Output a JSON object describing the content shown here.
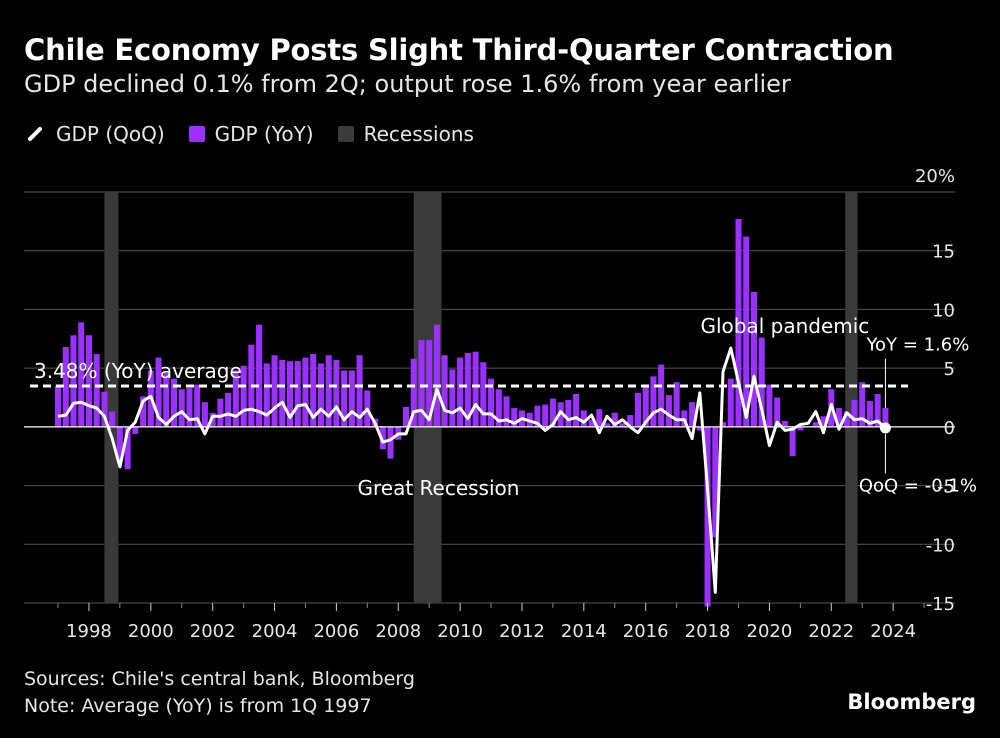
{
  "title": "Chile Economy Posts Slight Third-Quarter Contraction",
  "subtitle": "GDP declined 0.1% from 2Q; output rose 1.6% from year earlier",
  "legend": {
    "qoq": "GDP (QoQ)",
    "yoy": "GDP (YoY)",
    "recessions": "Recessions"
  },
  "footer": {
    "sources": "Sources: Chile's central bank, Bloomberg",
    "note": "Note: Average (YoY) is from 1Q 1997"
  },
  "brand": "Bloomberg",
  "colors": {
    "yoy": "#9b30ff",
    "qoq": "#ffffff",
    "recession": "#3a3a3a",
    "grid": "#555555",
    "background": "#000000"
  },
  "chart_data": {
    "type": "bar",
    "x_start": 1997.0,
    "x_step": 0.25,
    "ylim": [
      -15,
      20
    ],
    "y_ticks": [
      -15,
      -10,
      -5,
      0,
      5,
      10,
      15,
      20
    ],
    "y_tick_labels": [
      "-15",
      "-10",
      "-5",
      "0",
      "5",
      "10",
      "15",
      "20%"
    ],
    "x_ticks": [
      1998,
      2000,
      2002,
      2004,
      2006,
      2008,
      2010,
      2012,
      2014,
      2016,
      2018,
      2020,
      2022,
      2024
    ],
    "x_tick_labels": [
      "1998",
      "2000",
      "2002",
      "2004",
      "2006",
      "2008",
      "2010",
      "2012",
      "2014",
      "2016",
      "2018",
      "2020",
      "2022",
      "2024"
    ],
    "xlim": [
      1995.9,
      2026.0
    ],
    "grid": true,
    "legend_position": "top-left",
    "series": [
      {
        "name": "GDP (YoY)",
        "type": "bar",
        "values": [
          3.5,
          6.8,
          7.8,
          8.9,
          7.8,
          6.2,
          3.0,
          1.3,
          -3.0,
          -3.6,
          -0.6,
          2.6,
          4.8,
          5.9,
          4.6,
          4.1,
          3.2,
          3.3,
          3.6,
          2.1,
          1.2,
          2.4,
          2.9,
          4.8,
          5.2,
          7.0,
          8.7,
          5.4,
          6.1,
          5.7,
          5.6,
          5.6,
          5.9,
          6.2,
          5.4,
          6.1,
          5.7,
          4.8,
          4.8,
          6.1,
          3.1,
          0.7,
          -1.9,
          -2.7,
          -1.1,
          1.7,
          5.8,
          7.4,
          7.4,
          8.7,
          6.1,
          4.9,
          5.9,
          6.3,
          6.4,
          5.5,
          4.1,
          3.2,
          2.6,
          1.6,
          1.4,
          1.2,
          1.8,
          1.9,
          2.4,
          2.1,
          2.3,
          2.8,
          1.4,
          0.6,
          1.5,
          0.3,
          1.2,
          0.3,
          1.0,
          2.9,
          3.4,
          4.3,
          5.3,
          2.7,
          3.8,
          1.4,
          2.1,
          -0.3,
          -15.3,
          -9.4,
          0.4,
          4.1,
          17.7,
          16.2,
          11.5,
          7.6,
          3.6,
          2.5,
          0.5,
          -2.5,
          -0.3,
          0.0,
          0.4,
          0.9,
          3.2,
          1.6,
          1.3,
          2.3,
          3.8,
          2.2,
          2.8,
          1.6
        ]
      },
      {
        "name": "GDP (QoQ)",
        "type": "line",
        "values": [
          0.9,
          1.0,
          2.0,
          2.1,
          1.8,
          1.6,
          0.9,
          -1.0,
          -3.4,
          -0.3,
          0.4,
          2.2,
          2.6,
          0.8,
          0.2,
          0.9,
          1.3,
          0.6,
          0.7,
          -0.6,
          0.9,
          0.9,
          1.1,
          0.9,
          1.4,
          1.5,
          1.3,
          1.0,
          1.6,
          2.1,
          0.8,
          1.8,
          1.9,
          0.8,
          1.5,
          0.9,
          1.7,
          0.6,
          1.3,
          0.8,
          1.5,
          0.3,
          -1.3,
          -1.1,
          -0.6,
          -0.6,
          1.3,
          1.4,
          0.6,
          3.2,
          1.4,
          1.2,
          1.6,
          0.7,
          1.9,
          1.1,
          1.1,
          0.5,
          0.6,
          0.3,
          0.7,
          0.5,
          0.3,
          -0.3,
          0.2,
          1.3,
          0.6,
          0.8,
          0.4,
          1.0,
          -0.5,
          0.9,
          0.2,
          0.6,
          0.0,
          -0.5,
          0.4,
          1.2,
          1.5,
          1.0,
          0.6,
          0.6,
          -1.0,
          2.9,
          -5.3,
          -14.1,
          4.7,
          6.7,
          3.8,
          0.8,
          4.3,
          1.5,
          -1.6,
          0.4,
          -0.3,
          -0.2,
          0.2,
          0.3,
          1.3,
          -0.5,
          1.9,
          -0.2,
          1.2,
          0.6,
          0.7,
          0.3,
          0.5,
          -0.1
        ]
      }
    ],
    "recessions": [
      [
        1998.5,
        1998.95
      ],
      [
        2008.5,
        2009.4
      ],
      [
        2022.45,
        2022.85
      ]
    ],
    "average": {
      "value": 3.48,
      "label": "3.48% (YoY) average"
    },
    "annotations": [
      {
        "text": "Great Recession",
        "x": 2009.3,
        "y": -5.8
      },
      {
        "text": "Global pandemic",
        "x": 2020.5,
        "y": 8.0
      },
      {
        "text": "YoY = 1.6%",
        "x": 2024.8,
        "y": 6.5
      },
      {
        "text": "QoQ = -0.1%",
        "x": 2024.8,
        "y": -5.5
      }
    ]
  }
}
